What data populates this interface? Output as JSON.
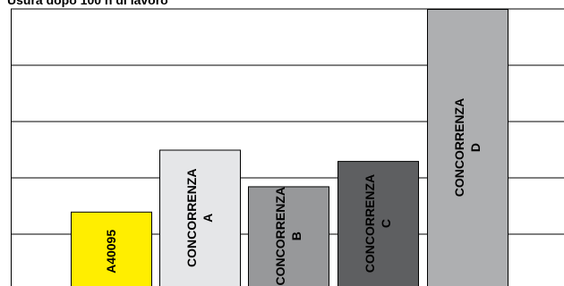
{
  "chart_data": {
    "type": "bar",
    "title": "Usura dopo 100 h di lavoro",
    "xlabel": "",
    "ylabel": "",
    "ylim": [
      0,
      5
    ],
    "grid": true,
    "legend": "none",
    "categories": [
      {
        "line1": "A40095",
        "line2": "",
        "value": 1.4,
        "color": "#ffee00"
      },
      {
        "line1": "CONCORRENZA",
        "line2": "A",
        "value": 2.5,
        "color": "#e5e6e8"
      },
      {
        "line1": "CONCORRENZA",
        "line2": "B",
        "value": 1.85,
        "color": "#97989a"
      },
      {
        "line1": "CONCORRENZA",
        "line2": "C",
        "value": 2.3,
        "color": "#5e5f61"
      },
      {
        "line1": "CONCORRENZA",
        "line2": "D",
        "value": 5.0,
        "color": "#aeafb1"
      }
    ],
    "colors": {
      "gridline": "#000000",
      "bar_border": "#000000",
      "label_text": "#000000"
    }
  }
}
